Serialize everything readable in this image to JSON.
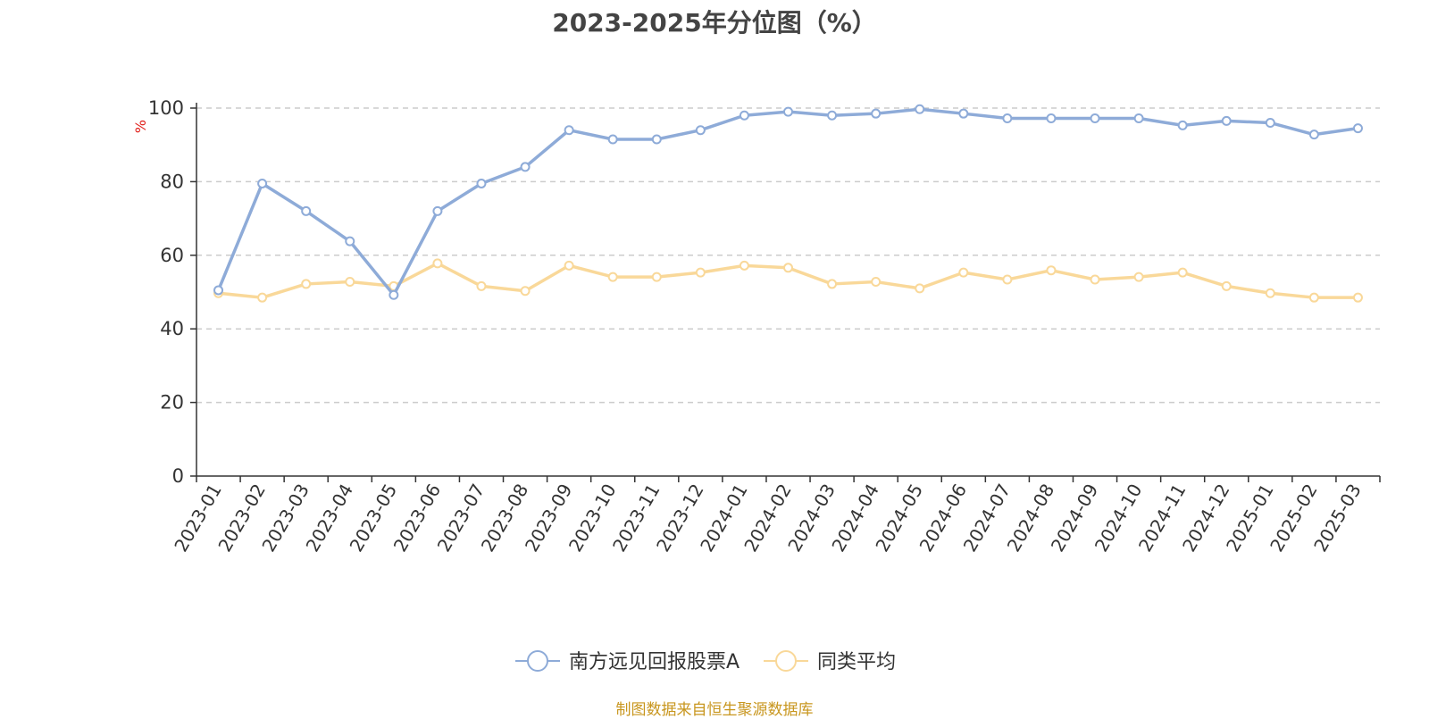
{
  "title": "2023-2025年分位图（%）",
  "source_note": "制图数据来自恒生聚源数据库",
  "chart_data": {
    "type": "line",
    "title": "2023-2025年分位图（%）",
    "ylabel": "%",
    "xlabel": "",
    "ylim": [
      0,
      100
    ],
    "yticks": [
      0,
      20,
      40,
      60,
      80,
      100
    ],
    "grid": true,
    "legend_position": "bottom",
    "x": [
      "2023-01",
      "2023-02",
      "2023-03",
      "2023-04",
      "2023-05",
      "2023-06",
      "2023-07",
      "2023-08",
      "2023-09",
      "2023-10",
      "2023-11",
      "2023-12",
      "2024-01",
      "2024-02",
      "2024-03",
      "2024-04",
      "2024-05",
      "2024-06",
      "2024-07",
      "2024-08",
      "2024-09",
      "2024-10",
      "2024-11",
      "2024-12",
      "2025-01",
      "2025-02",
      "2025-03"
    ],
    "series": [
      {
        "name": "南方远见回报股票A",
        "color": "#8eabd8",
        "values": [
          50.5,
          79.5,
          72,
          63.8,
          49.2,
          72,
          79.5,
          84,
          94,
          91.5,
          91.5,
          94,
          98,
          99,
          98,
          98.5,
          99.7,
          98.5,
          97.2,
          97.2,
          97.2,
          97.2,
          95.3,
          96.5,
          96,
          92.8,
          94.5
        ]
      },
      {
        "name": "同类平均",
        "color": "#f9d899",
        "values": [
          49.7,
          48.5,
          52.2,
          52.8,
          51.6,
          57.8,
          51.6,
          50.3,
          57.2,
          54.1,
          54.1,
          55.3,
          57.2,
          56.6,
          52.2,
          52.8,
          51,
          55.3,
          53.4,
          55.9,
          53.4,
          54.1,
          55.3,
          51.6,
          49.7,
          48.5,
          48.5
        ]
      }
    ]
  }
}
